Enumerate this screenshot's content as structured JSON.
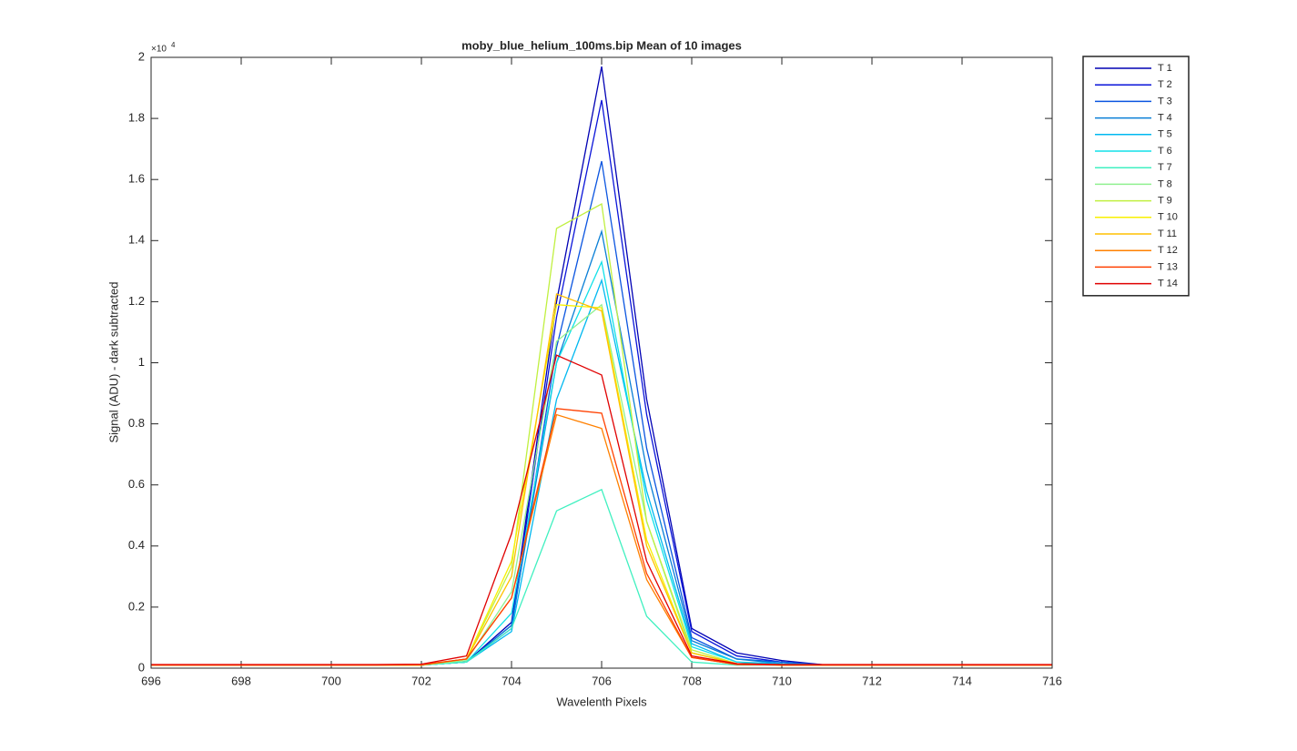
{
  "chart_data": {
    "type": "line",
    "title": "moby_blue_helium_100ms.bip  Mean of 10 images",
    "x_label": "Wavelenth Pixels",
    "y_label": "Signal (ADU) - dark subtracted",
    "y_multiplier_base": "×10",
    "y_multiplier_exponent": "4",
    "x": [
      696,
      697,
      698,
      699,
      700,
      701,
      702,
      703,
      704,
      705,
      706,
      707,
      708,
      709,
      710,
      711,
      712,
      713,
      714,
      715,
      716
    ],
    "xlim": [
      696,
      716
    ],
    "xticks": [
      696,
      698,
      700,
      702,
      704,
      706,
      708,
      710,
      712,
      714,
      716
    ],
    "ylim": [
      0,
      2
    ],
    "yticks": [
      0,
      0.2,
      0.4,
      0.6,
      0.8,
      1,
      1.2,
      1.4,
      1.6,
      1.8,
      2
    ],
    "legend_position": "outside-right",
    "series": [
      {
        "name": "T 1",
        "color": "#0000b4",
        "values": [
          0.01,
          0.01,
          0.01,
          0.01,
          0.01,
          0.01,
          0.01,
          0.02,
          0.15,
          1.2,
          1.97,
          0.88,
          0.13,
          0.05,
          0.025,
          0.01,
          0.01,
          0.01,
          0.01,
          0.01,
          0.01
        ]
      },
      {
        "name": "T 2",
        "color": "#0a14d9",
        "values": [
          0.01,
          0.01,
          0.01,
          0.01,
          0.01,
          0.01,
          0.01,
          0.02,
          0.14,
          1.15,
          1.86,
          0.83,
          0.12,
          0.04,
          0.02,
          0.01,
          0.01,
          0.01,
          0.01,
          0.01,
          0.01
        ]
      },
      {
        "name": "T 3",
        "color": "#0b55e0",
        "values": [
          0.01,
          0.01,
          0.01,
          0.01,
          0.01,
          0.01,
          0.01,
          0.02,
          0.13,
          1.05,
          1.66,
          0.72,
          0.1,
          0.03,
          0.02,
          0.01,
          0.01,
          0.01,
          0.01,
          0.01,
          0.01
        ]
      },
      {
        "name": "T 4",
        "color": "#0a7fd6",
        "values": [
          0.01,
          0.01,
          0.01,
          0.01,
          0.01,
          0.01,
          0.01,
          0.02,
          0.14,
          1.0,
          1.43,
          0.65,
          0.09,
          0.03,
          0.015,
          0.01,
          0.01,
          0.01,
          0.01,
          0.01,
          0.01
        ]
      },
      {
        "name": "T 5",
        "color": "#00b8f0",
        "values": [
          0.01,
          0.01,
          0.01,
          0.01,
          0.01,
          0.01,
          0.01,
          0.02,
          0.12,
          0.88,
          1.27,
          0.58,
          0.08,
          0.02,
          0.015,
          0.01,
          0.01,
          0.01,
          0.01,
          0.01,
          0.01
        ]
      },
      {
        "name": "T 6",
        "color": "#10e0e8",
        "values": [
          0.01,
          0.01,
          0.01,
          0.01,
          0.01,
          0.01,
          0.01,
          0.02,
          0.18,
          1.0,
          1.33,
          0.55,
          0.07,
          0.02,
          0.01,
          0.01,
          0.01,
          0.01,
          0.01,
          0.01,
          0.01
        ]
      },
      {
        "name": "T 7",
        "color": "#40f0c0",
        "values": [
          0.01,
          0.01,
          0.01,
          0.01,
          0.01,
          0.01,
          0.01,
          0.02,
          0.13,
          0.515,
          0.585,
          0.17,
          0.02,
          0.01,
          0.01,
          0.01,
          0.01,
          0.01,
          0.01,
          0.01,
          0.01
        ]
      },
      {
        "name": "T 8",
        "color": "#90f090",
        "values": [
          0.01,
          0.01,
          0.01,
          0.01,
          0.01,
          0.01,
          0.01,
          0.025,
          0.25,
          1.07,
          1.19,
          0.48,
          0.05,
          0.015,
          0.01,
          0.01,
          0.01,
          0.01,
          0.01,
          0.01,
          0.01
        ]
      },
      {
        "name": "T 9",
        "color": "#c0f040",
        "values": [
          0.01,
          0.01,
          0.01,
          0.01,
          0.01,
          0.01,
          0.01,
          0.03,
          0.33,
          1.44,
          1.52,
          0.48,
          0.06,
          0.015,
          0.01,
          0.01,
          0.01,
          0.01,
          0.01,
          0.01,
          0.01
        ]
      },
      {
        "name": "T 10",
        "color": "#f8f000",
        "values": [
          0.01,
          0.01,
          0.01,
          0.01,
          0.01,
          0.01,
          0.01,
          0.03,
          0.35,
          1.19,
          1.18,
          0.42,
          0.05,
          0.015,
          0.01,
          0.01,
          0.01,
          0.01,
          0.01,
          0.01,
          0.01
        ]
      },
      {
        "name": "T 11",
        "color": "#ffc000",
        "values": [
          0.01,
          0.01,
          0.01,
          0.01,
          0.01,
          0.01,
          0.01,
          0.03,
          0.3,
          1.225,
          1.17,
          0.4,
          0.05,
          0.015,
          0.01,
          0.01,
          0.01,
          0.01,
          0.01,
          0.01,
          0.01
        ]
      },
      {
        "name": "T 12",
        "color": "#ff8000",
        "values": [
          0.01,
          0.01,
          0.01,
          0.01,
          0.01,
          0.01,
          0.01,
          0.03,
          0.23,
          0.83,
          0.785,
          0.29,
          0.035,
          0.012,
          0.01,
          0.01,
          0.01,
          0.01,
          0.01,
          0.01,
          0.01
        ]
      },
      {
        "name": "T 13",
        "color": "#ff4000",
        "values": [
          0.01,
          0.01,
          0.01,
          0.01,
          0.01,
          0.01,
          0.012,
          0.03,
          0.23,
          0.85,
          0.835,
          0.31,
          0.035,
          0.012,
          0.01,
          0.01,
          0.01,
          0.01,
          0.01,
          0.01,
          0.01
        ]
      },
      {
        "name": "T 14",
        "color": "#e00000",
        "values": [
          0.012,
          0.012,
          0.012,
          0.012,
          0.012,
          0.012,
          0.013,
          0.04,
          0.44,
          1.025,
          0.96,
          0.35,
          0.04,
          0.015,
          0.012,
          0.012,
          0.012,
          0.012,
          0.012,
          0.012,
          0.012
        ]
      }
    ]
  }
}
